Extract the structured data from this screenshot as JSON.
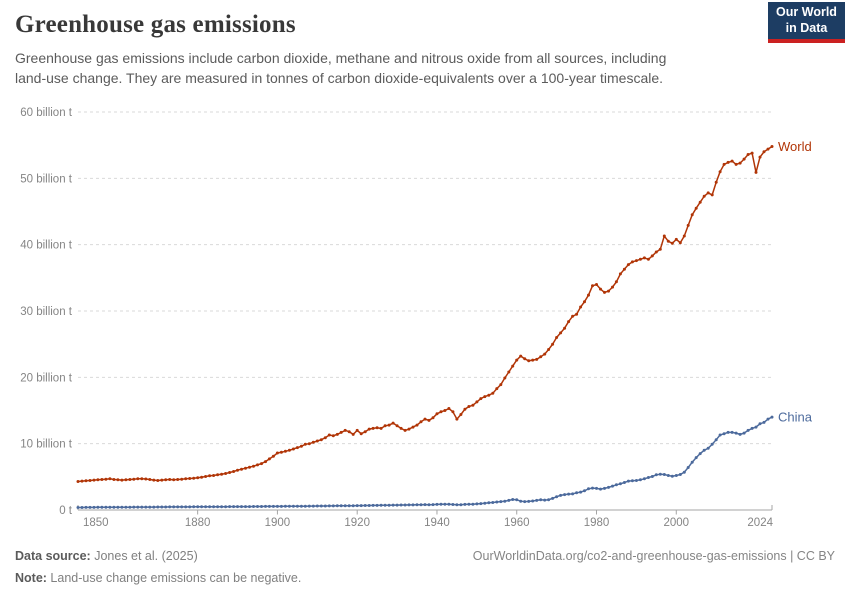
{
  "header": {
    "title": "Greenhouse gas emissions",
    "subtitle_line1": "Greenhouse gas emissions include carbon dioxide, methane and nitrous oxide from all sources, including",
    "subtitle_line2": "land-use change. They are measured in tonnes of carbon dioxide-equivalents over a 100-year timescale.",
    "logo": {
      "line1": "Our World",
      "line2": "in Data"
    }
  },
  "footer": {
    "data_source_label": "Data source:",
    "data_source_value": " Jones et al. (2025)",
    "note_label": "Note:",
    "note_value": " Land-use change emissions can be negative.",
    "attribution": "OurWorldinData.org/co2-and-greenhouse-gas-emissions | CC BY"
  },
  "colors": {
    "world_series": "#b13507",
    "china_series": "#4c6a9c",
    "logo_bg": "#1d3d63",
    "logo_bar": "#cb2121",
    "grid": "#dadada",
    "axis": "#a5a5a5",
    "tick_text": "#858585"
  },
  "chart_data": {
    "type": "line",
    "title": "Greenhouse gas emissions",
    "unit": "tonnes of CO2-equivalents",
    "xlim": [
      1850,
      2024
    ],
    "ylim": [
      0,
      60
    ],
    "grid": "horizontal-dashed",
    "legend_position": "line-end-labels",
    "x_ticks": [
      1850,
      1880,
      1900,
      1920,
      1940,
      1960,
      1980,
      2000,
      2024
    ],
    "y_ticks": [
      {
        "value": 0,
        "label": "0 t"
      },
      {
        "value": 10,
        "label": "10 billion t"
      },
      {
        "value": 20,
        "label": "20 billion t"
      },
      {
        "value": 30,
        "label": "30 billion t"
      },
      {
        "value": 40,
        "label": "40 billion t"
      },
      {
        "value": 50,
        "label": "50 billion t"
      },
      {
        "value": 60,
        "label": "60 billion t"
      }
    ],
    "series": [
      {
        "name": "World",
        "color": "#b13507",
        "start_year": 1850,
        "unit": "billion t",
        "values": [
          4.3,
          4.35,
          4.4,
          4.45,
          4.5,
          4.55,
          4.6,
          4.65,
          4.7,
          4.6,
          4.55,
          4.5,
          4.55,
          4.6,
          4.65,
          4.7,
          4.72,
          4.68,
          4.6,
          4.5,
          4.45,
          4.5,
          4.55,
          4.6,
          4.55,
          4.6,
          4.65,
          4.7,
          4.75,
          4.8,
          4.85,
          4.95,
          5.05,
          5.15,
          5.2,
          5.3,
          5.4,
          5.5,
          5.65,
          5.8,
          6.0,
          6.15,
          6.3,
          6.45,
          6.6,
          6.8,
          7.0,
          7.3,
          7.7,
          8.1,
          8.6,
          8.7,
          8.85,
          9.0,
          9.2,
          9.4,
          9.6,
          9.9,
          10.0,
          10.2,
          10.4,
          10.6,
          10.9,
          11.3,
          11.2,
          11.4,
          11.7,
          12.0,
          11.8,
          11.4,
          12.0,
          11.5,
          11.8,
          12.2,
          12.3,
          12.4,
          12.3,
          12.7,
          12.8,
          13.1,
          12.7,
          12.3,
          12.0,
          12.2,
          12.5,
          12.8,
          13.3,
          13.7,
          13.5,
          13.9,
          14.5,
          14.8,
          15.0,
          15.3,
          14.8,
          13.7,
          14.4,
          15.2,
          15.6,
          15.8,
          16.3,
          16.8,
          17.1,
          17.3,
          17.6,
          18.3,
          18.9,
          19.9,
          20.8,
          21.7,
          22.6,
          23.2,
          22.8,
          22.5,
          22.6,
          22.7,
          23.1,
          23.5,
          24.2,
          25.0,
          26.0,
          26.7,
          27.4,
          28.4,
          29.2,
          29.5,
          30.6,
          31.4,
          32.4,
          33.8,
          34.0,
          33.3,
          32.8,
          33.0,
          33.6,
          34.4,
          35.6,
          36.3,
          37.0,
          37.4,
          37.6,
          37.8,
          38.0,
          37.8,
          38.3,
          38.9,
          39.3,
          41.3,
          40.5,
          40.2,
          40.8,
          40.3,
          41.3,
          42.9,
          44.5,
          45.5,
          46.4,
          47.3,
          47.8,
          47.5,
          49.4,
          51.0,
          52.1,
          52.4,
          52.6,
          52.1,
          52.3,
          52.9,
          53.6,
          53.8,
          50.9,
          53.2,
          54.0,
          54.4,
          54.8
        ]
      },
      {
        "name": "China",
        "color": "#4c6a9c",
        "start_year": 1850,
        "unit": "billion t",
        "values": [
          0.38,
          0.38,
          0.39,
          0.39,
          0.39,
          0.4,
          0.4,
          0.4,
          0.41,
          0.41,
          0.41,
          0.42,
          0.42,
          0.42,
          0.43,
          0.43,
          0.43,
          0.44,
          0.44,
          0.44,
          0.45,
          0.45,
          0.45,
          0.46,
          0.46,
          0.46,
          0.47,
          0.47,
          0.47,
          0.48,
          0.48,
          0.48,
          0.49,
          0.49,
          0.49,
          0.5,
          0.5,
          0.5,
          0.51,
          0.51,
          0.51,
          0.52,
          0.52,
          0.52,
          0.53,
          0.53,
          0.53,
          0.54,
          0.54,
          0.54,
          0.55,
          0.55,
          0.56,
          0.56,
          0.57,
          0.57,
          0.58,
          0.58,
          0.59,
          0.59,
          0.6,
          0.6,
          0.61,
          0.62,
          0.62,
          0.63,
          0.64,
          0.64,
          0.65,
          0.65,
          0.66,
          0.67,
          0.68,
          0.68,
          0.69,
          0.7,
          0.71,
          0.72,
          0.73,
          0.74,
          0.74,
          0.75,
          0.76,
          0.77,
          0.77,
          0.78,
          0.8,
          0.82,
          0.8,
          0.82,
          0.85,
          0.86,
          0.87,
          0.86,
          0.83,
          0.78,
          0.8,
          0.84,
          0.87,
          0.88,
          0.92,
          0.97,
          1.02,
          1.08,
          1.13,
          1.2,
          1.26,
          1.32,
          1.45,
          1.58,
          1.55,
          1.32,
          1.26,
          1.3,
          1.36,
          1.45,
          1.55,
          1.5,
          1.55,
          1.75,
          2.0,
          2.2,
          2.32,
          2.4,
          2.42,
          2.6,
          2.7,
          2.9,
          3.2,
          3.3,
          3.25,
          3.15,
          3.25,
          3.4,
          3.6,
          3.8,
          3.95,
          4.15,
          4.35,
          4.4,
          4.45,
          4.55,
          4.7,
          4.9,
          5.05,
          5.3,
          5.4,
          5.35,
          5.2,
          5.1,
          5.2,
          5.35,
          5.7,
          6.4,
          7.2,
          7.9,
          8.5,
          9.0,
          9.3,
          9.9,
          10.6,
          11.3,
          11.5,
          11.7,
          11.7,
          11.6,
          11.4,
          11.6,
          12.0,
          12.3,
          12.5,
          13.0,
          13.2,
          13.7,
          14.0
        ]
      }
    ]
  }
}
